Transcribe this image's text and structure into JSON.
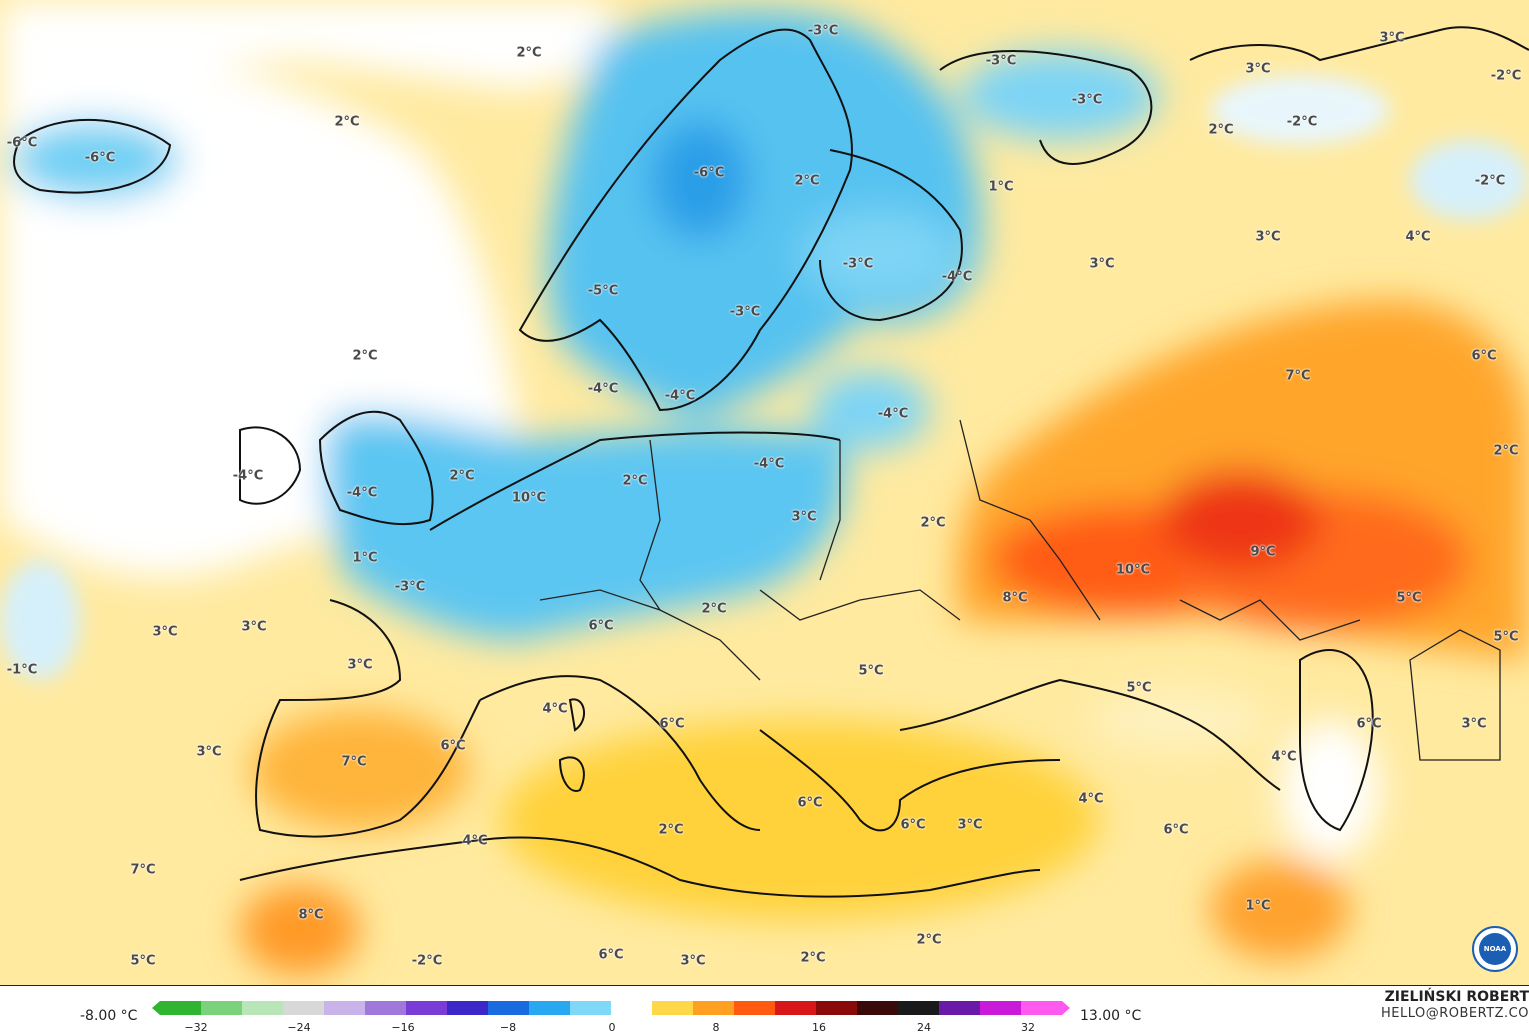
{
  "legend": {
    "min_label": "-8.00 °C",
    "max_label": "13.00 °C",
    "ticks": [
      "−32",
      "−24",
      "−16",
      "−8",
      "0",
      "8",
      "16",
      "24",
      "32"
    ],
    "colors": [
      "#2fb52f",
      "#7ad27a",
      "#b8e6b8",
      "#d8d8d8",
      "#c8b4e8",
      "#a078dc",
      "#7a3cd6",
      "#3c28c8",
      "#1a6ae0",
      "#28a8f0",
      "#80d8f8",
      "#ffffff",
      "#ffd84a",
      "#ffa020",
      "#ff5a10",
      "#d81818",
      "#8a0a0a",
      "#3a0a0a",
      "#1a1a1a",
      "#6a1aa8",
      "#c81ad8",
      "#ff5af0"
    ]
  },
  "author": {
    "name": "ZIELIŃSKI ROBERT",
    "email": "HELLO@ROBERTZ.CO"
  },
  "logo": {
    "name": "noaa-logo",
    "text": "NOAA"
  },
  "map_labels": [
    {
      "t": "2°C"
    },
    {
      "t": "-3°C"
    },
    {
      "t": "-3°C"
    },
    {
      "t": "-3°C"
    },
    {
      "t": "3°C"
    },
    {
      "t": "3°C"
    },
    {
      "t": "-2°C"
    },
    {
      "t": "2°C"
    },
    {
      "t": "-2°C"
    },
    {
      "t": "2°C"
    },
    {
      "t": "-6°C"
    },
    {
      "t": "-6°C"
    },
    {
      "t": "-6°C"
    },
    {
      "t": "2°C"
    },
    {
      "t": "1°C"
    },
    {
      "t": "-2°C"
    },
    {
      "t": "3°C"
    },
    {
      "t": "4°C"
    },
    {
      "t": "-3°C"
    },
    {
      "t": "-4°C"
    },
    {
      "t": "3°C"
    },
    {
      "t": "-5°C"
    },
    {
      "t": "-3°C"
    },
    {
      "t": "2°C"
    },
    {
      "t": "6°C"
    },
    {
      "t": "7°C"
    },
    {
      "t": "-4°C"
    },
    {
      "t": "-4°C"
    },
    {
      "t": "-4°C"
    },
    {
      "t": "2°C"
    },
    {
      "t": "2°C"
    },
    {
      "t": "-4°C"
    },
    {
      "t": "-4°C"
    },
    {
      "t": "-4°C"
    },
    {
      "t": "2°C"
    },
    {
      "t": "3°C"
    },
    {
      "t": "2°C"
    },
    {
      "t": "1°C"
    },
    {
      "t": "-3°C"
    },
    {
      "t": "10°C"
    },
    {
      "t": "10°C"
    },
    {
      "t": "9°C"
    },
    {
      "t": "8°C"
    },
    {
      "t": "5°C"
    },
    {
      "t": "2°C"
    },
    {
      "t": "6°C"
    },
    {
      "t": "3°C"
    },
    {
      "t": "3°C"
    },
    {
      "t": "3°C"
    },
    {
      "t": "-1°C"
    },
    {
      "t": "5°C"
    },
    {
      "t": "4°C"
    },
    {
      "t": "5°C"
    },
    {
      "t": "5°C"
    },
    {
      "t": "6°C"
    },
    {
      "t": "6°C"
    },
    {
      "t": "3°C"
    },
    {
      "t": "6°C"
    },
    {
      "t": "7°C"
    },
    {
      "t": "3°C"
    },
    {
      "t": "4°C"
    },
    {
      "t": "6°C"
    },
    {
      "t": "2°C"
    },
    {
      "t": "4°C"
    },
    {
      "t": "3°C"
    },
    {
      "t": "6°C"
    },
    {
      "t": "6°C"
    },
    {
      "t": "4°C"
    },
    {
      "t": "7°C"
    },
    {
      "t": "8°C"
    },
    {
      "t": "1°C"
    },
    {
      "t": "5°C"
    },
    {
      "t": "-2°C"
    },
    {
      "t": "6°C"
    },
    {
      "t": "3°C"
    },
    {
      "t": "2°C"
    },
    {
      "t": "2°C"
    }
  ]
}
